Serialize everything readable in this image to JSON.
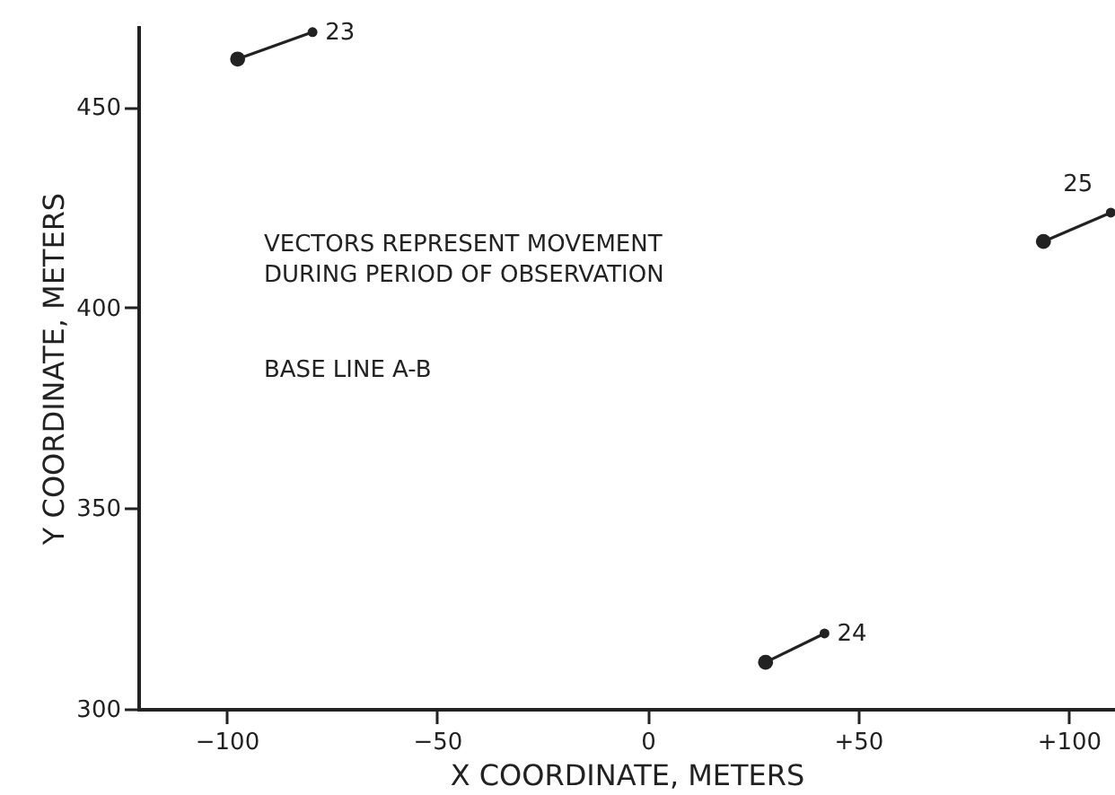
{
  "chart_data": {
    "type": "line",
    "xlabel": "X  COORDINATE, METERS",
    "ylabel": "Y  COORDINATE, METERS",
    "xlim": [
      -121,
      111
    ],
    "ylim": [
      300,
      470
    ],
    "xticks": [
      -100,
      -50,
      0,
      {
        "value": 50,
        "label": "+50"
      },
      {
        "value": 100,
        "label": "+100"
      }
    ],
    "yticks": [
      300,
      350,
      400,
      450
    ],
    "grid": false,
    "marker": "circle",
    "line_style": "solid",
    "series": [
      {
        "color": "#222222",
        "x": [
          -79.6,
          -97.4
        ],
        "values": [
          468.7,
          462.0
        ]
      },
      {
        "color": "#222222",
        "x": [
          42.0,
          28.0
        ],
        "values": [
          318.8,
          311.6
        ]
      },
      {
        "color": "#222222",
        "x": [
          110.0,
          94.0
        ],
        "values": [
          423.7,
          416.5
        ]
      }
    ],
    "annotations": [
      "VECTORS REPRESENT MOVEMENT\nDURING PERIOD OF OBSERVATION",
      "BASE LINE A-B",
      {
        "text": "23",
        "x": -79.6,
        "y": 468.7
      },
      {
        "text": "24",
        "x": 42.0,
        "y": 318.8
      },
      {
        "text": "25",
        "x": 110.0,
        "y": 423.7
      }
    ]
  }
}
